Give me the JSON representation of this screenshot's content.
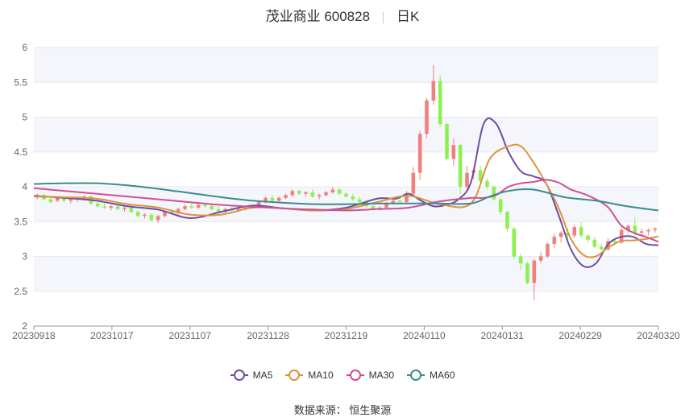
{
  "title": {
    "name": "茂业商业 600828",
    "period": "日K"
  },
  "source": "数据来源： 恒生聚源",
  "colors": {
    "up": "#f07f7f",
    "down": "#8ef04f",
    "MA5": "#6b4ea3",
    "MA10": "#e0923e",
    "MA30": "#cf4f96",
    "MA60": "#3b8c8f"
  },
  "chart_data": {
    "type": "candlestick",
    "title": "茂业商业 600828 日K",
    "ylim": [
      2,
      6
    ],
    "y_ticks": [
      "2",
      "2.5",
      "3",
      "3.5",
      "4",
      "4.5",
      "5",
      "5.5",
      "6"
    ],
    "x_range": [
      "20230918",
      "20240320"
    ],
    "x_ticks": [
      "20230918",
      "20231017",
      "20231107",
      "20231128",
      "20231219",
      "20240110",
      "20240131",
      "20240229",
      "20240320"
    ],
    "legend": [
      "MA5",
      "MA10",
      "MA30",
      "MA60"
    ],
    "legend_position": "bottom",
    "grid": true,
    "candles": [
      [
        3.85,
        3.9,
        3.82,
        3.88
      ],
      [
        3.88,
        3.9,
        3.8,
        3.82
      ],
      [
        3.82,
        3.85,
        3.76,
        3.78
      ],
      [
        3.8,
        3.86,
        3.78,
        3.84
      ],
      [
        3.84,
        3.86,
        3.78,
        3.8
      ],
      [
        3.8,
        3.84,
        3.76,
        3.82
      ],
      [
        3.82,
        3.85,
        3.78,
        3.83
      ],
      [
        3.83,
        3.88,
        3.8,
        3.86
      ],
      [
        3.86,
        3.88,
        3.74,
        3.76
      ],
      [
        3.76,
        3.78,
        3.7,
        3.72
      ],
      [
        3.72,
        3.76,
        3.68,
        3.7
      ],
      [
        3.7,
        3.74,
        3.66,
        3.72
      ],
      [
        3.72,
        3.74,
        3.66,
        3.68
      ],
      [
        3.68,
        3.72,
        3.64,
        3.7
      ],
      [
        3.7,
        3.72,
        3.62,
        3.64
      ],
      [
        3.64,
        3.66,
        3.56,
        3.58
      ],
      [
        3.58,
        3.62,
        3.54,
        3.6
      ],
      [
        3.6,
        3.62,
        3.5,
        3.52
      ],
      [
        3.52,
        3.6,
        3.48,
        3.58
      ],
      [
        3.58,
        3.66,
        3.56,
        3.64
      ],
      [
        3.64,
        3.68,
        3.6,
        3.62
      ],
      [
        3.62,
        3.7,
        3.6,
        3.68
      ],
      [
        3.68,
        3.74,
        3.66,
        3.72
      ],
      [
        3.72,
        3.76,
        3.68,
        3.7
      ],
      [
        3.7,
        3.76,
        3.68,
        3.74
      ],
      [
        3.74,
        3.76,
        3.7,
        3.72
      ],
      [
        3.72,
        3.74,
        3.66,
        3.68
      ],
      [
        3.68,
        3.72,
        3.62,
        3.64
      ],
      [
        3.64,
        3.7,
        3.62,
        3.68
      ],
      [
        3.68,
        3.72,
        3.64,
        3.66
      ],
      [
        3.66,
        3.7,
        3.64,
        3.68
      ],
      [
        3.68,
        3.72,
        3.66,
        3.7
      ],
      [
        3.7,
        3.74,
        3.68,
        3.72
      ],
      [
        3.72,
        3.8,
        3.7,
        3.78
      ],
      [
        3.78,
        3.86,
        3.76,
        3.84
      ],
      [
        3.84,
        3.88,
        3.78,
        3.8
      ],
      [
        3.8,
        3.86,
        3.78,
        3.84
      ],
      [
        3.84,
        3.9,
        3.82,
        3.88
      ],
      [
        3.88,
        3.96,
        3.86,
        3.94
      ],
      [
        3.94,
        3.96,
        3.88,
        3.9
      ],
      [
        3.9,
        3.94,
        3.86,
        3.92
      ],
      [
        3.92,
        3.96,
        3.84,
        3.86
      ],
      [
        3.86,
        3.9,
        3.82,
        3.88
      ],
      [
        3.88,
        3.94,
        3.86,
        3.92
      ],
      [
        3.92,
        4.0,
        3.9,
        3.96
      ],
      [
        3.96,
        3.98,
        3.88,
        3.9
      ],
      [
        3.9,
        3.92,
        3.84,
        3.86
      ],
      [
        3.86,
        3.9,
        3.8,
        3.82
      ],
      [
        3.82,
        3.86,
        3.76,
        3.78
      ],
      [
        3.78,
        3.8,
        3.7,
        3.72
      ],
      [
        3.72,
        3.74,
        3.66,
        3.68
      ],
      [
        3.68,
        3.72,
        3.66,
        3.7
      ],
      [
        3.7,
        3.78,
        3.68,
        3.76
      ],
      [
        3.76,
        3.82,
        3.74,
        3.8
      ],
      [
        3.8,
        3.84,
        3.76,
        3.78
      ],
      [
        3.78,
        3.94,
        3.76,
        3.9
      ],
      [
        3.9,
        4.28,
        3.88,
        4.2
      ],
      [
        4.2,
        4.8,
        4.1,
        4.76
      ],
      [
        4.76,
        5.28,
        4.7,
        5.24
      ],
      [
        5.24,
        5.75,
        5.18,
        5.52
      ],
      [
        5.52,
        5.6,
        4.86,
        4.9
      ],
      [
        4.9,
        4.92,
        4.38,
        4.4
      ],
      [
        4.4,
        4.7,
        4.3,
        4.6
      ],
      [
        4.6,
        4.62,
        3.9,
        4.0
      ],
      [
        4.0,
        4.3,
        3.96,
        4.2
      ],
      [
        4.2,
        4.28,
        4.1,
        4.24
      ],
      [
        4.24,
        4.3,
        4.06,
        4.08
      ],
      [
        4.08,
        4.12,
        3.96,
        4.0
      ],
      [
        4.0,
        4.02,
        3.8,
        3.82
      ],
      [
        3.82,
        3.84,
        3.6,
        3.64
      ],
      [
        3.64,
        3.66,
        3.36,
        3.4
      ],
      [
        3.4,
        3.42,
        2.96,
        3.0
      ],
      [
        3.0,
        3.04,
        2.8,
        2.9
      ],
      [
        2.9,
        2.92,
        2.6,
        2.62
      ],
      [
        2.62,
        2.96,
        2.38,
        2.94
      ],
      [
        2.94,
        3.06,
        2.9,
        3.0
      ],
      [
        3.0,
        3.2,
        2.98,
        3.18
      ],
      [
        3.18,
        3.32,
        3.12,
        3.28
      ],
      [
        3.28,
        3.36,
        3.2,
        3.34
      ],
      [
        3.34,
        3.4,
        3.24,
        3.3
      ],
      [
        3.3,
        3.46,
        3.26,
        3.42
      ],
      [
        3.42,
        3.5,
        3.26,
        3.3
      ],
      [
        3.3,
        3.32,
        3.2,
        3.24
      ],
      [
        3.24,
        3.28,
        3.12,
        3.14
      ],
      [
        3.14,
        3.18,
        3.08,
        3.1
      ],
      [
        3.1,
        3.26,
        3.08,
        3.22
      ],
      [
        3.22,
        3.26,
        3.16,
        3.2
      ],
      [
        3.2,
        3.42,
        3.18,
        3.38
      ],
      [
        3.38,
        3.46,
        3.32,
        3.44
      ],
      [
        3.44,
        3.56,
        3.3,
        3.34
      ],
      [
        3.34,
        3.4,
        3.28,
        3.36
      ],
      [
        3.36,
        3.4,
        3.3,
        3.38
      ],
      [
        3.38,
        3.42,
        3.34,
        3.4
      ]
    ],
    "series": [
      {
        "name": "MA5",
        "x": [
          0,
          0.05,
          0.1,
          0.15,
          0.2,
          0.25,
          0.3,
          0.35,
          0.4,
          0.45,
          0.5,
          0.55,
          0.58,
          0.6,
          0.62,
          0.64,
          0.66,
          0.68,
          0.7,
          0.72,
          0.74,
          0.76,
          0.78,
          0.8,
          0.82,
          0.84,
          0.86,
          0.88,
          0.9,
          0.92,
          0.94,
          0.96,
          0.98,
          1.0
        ],
        "values": [
          3.87,
          3.84,
          3.8,
          3.72,
          3.67,
          3.55,
          3.64,
          3.73,
          3.69,
          3.66,
          3.7,
          3.83,
          3.83,
          3.9,
          3.8,
          3.72,
          3.74,
          3.82,
          4.07,
          4.9,
          4.91,
          4.5,
          4.22,
          4.15,
          4.05,
          3.6,
          3.1,
          2.86,
          2.9,
          3.18,
          3.28,
          3.28,
          3.18,
          3.16
        ]
      },
      {
        "name": "MA10",
        "x": [
          0,
          0.05,
          0.1,
          0.15,
          0.2,
          0.25,
          0.3,
          0.35,
          0.4,
          0.45,
          0.5,
          0.55,
          0.6,
          0.65,
          0.7,
          0.73,
          0.76,
          0.78,
          0.8,
          0.82,
          0.84,
          0.86,
          0.88,
          0.9,
          0.92,
          0.94,
          0.96,
          0.98,
          1.0
        ],
        "values": [
          3.86,
          3.85,
          3.83,
          3.75,
          3.7,
          3.6,
          3.6,
          3.7,
          3.69,
          3.66,
          3.68,
          3.78,
          3.87,
          3.75,
          3.76,
          4.4,
          4.58,
          4.58,
          4.35,
          4.05,
          3.7,
          3.25,
          3.02,
          3.0,
          3.13,
          3.22,
          3.23,
          3.25,
          3.29
        ]
      },
      {
        "name": "MA30",
        "x": [
          0,
          0.1,
          0.2,
          0.3,
          0.4,
          0.5,
          0.55,
          0.6,
          0.65,
          0.7,
          0.72,
          0.74,
          0.76,
          0.78,
          0.8,
          0.82,
          0.84,
          0.86,
          0.88,
          0.9,
          0.92,
          0.94,
          0.96,
          0.98,
          1.0
        ],
        "values": [
          3.98,
          3.9,
          3.82,
          3.74,
          3.69,
          3.66,
          3.68,
          3.7,
          3.79,
          3.84,
          3.84,
          3.88,
          4.0,
          4.05,
          4.07,
          4.1,
          4.06,
          3.96,
          3.9,
          3.82,
          3.7,
          3.45,
          3.34,
          3.28,
          3.21
        ]
      },
      {
        "name": "MA60",
        "x": [
          0,
          0.05,
          0.1,
          0.15,
          0.2,
          0.25,
          0.3,
          0.35,
          0.4,
          0.45,
          0.5,
          0.55,
          0.6,
          0.65,
          0.7,
          0.73,
          0.76,
          0.8,
          0.85,
          0.9,
          0.95,
          1.0
        ],
        "values": [
          4.04,
          4.05,
          4.05,
          4.02,
          3.97,
          3.91,
          3.85,
          3.8,
          3.77,
          3.75,
          3.75,
          3.76,
          3.76,
          3.76,
          3.76,
          3.86,
          3.94,
          3.96,
          3.85,
          3.8,
          3.72,
          3.66
        ]
      }
    ]
  }
}
